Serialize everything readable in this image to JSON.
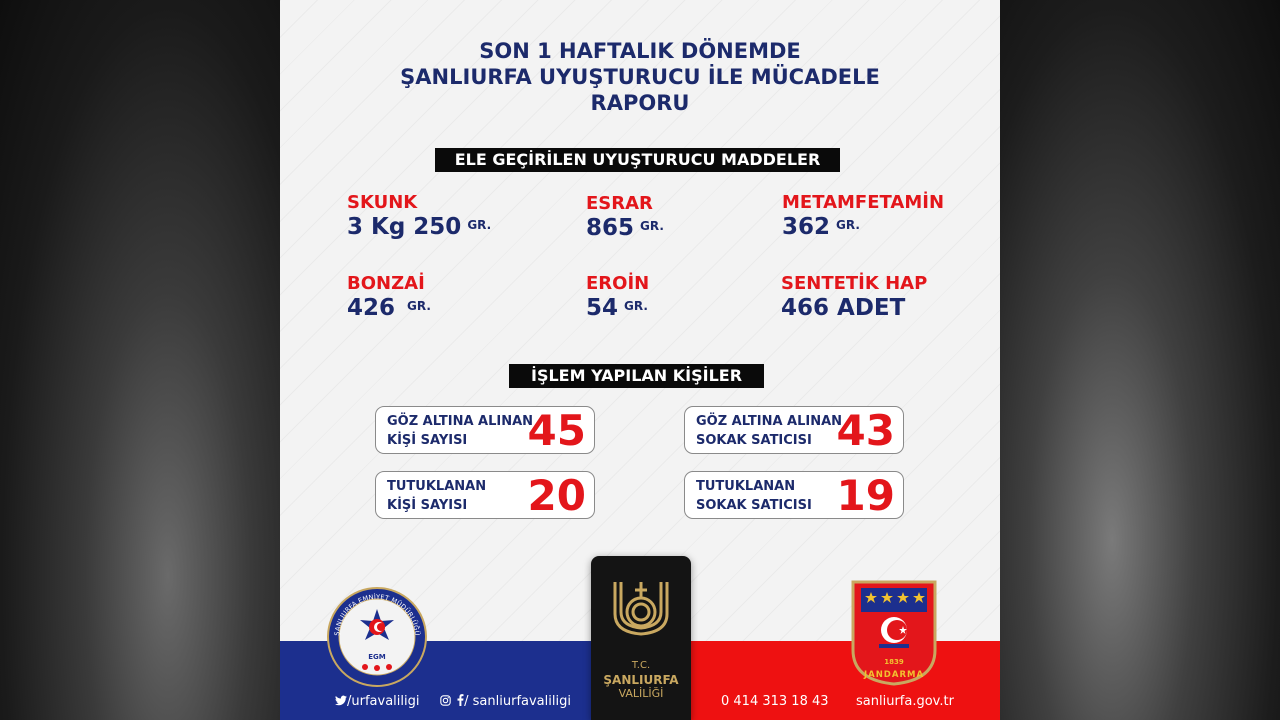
{
  "title": {
    "line1": "SON 1 HAFTALIK DÖNEMDE",
    "line2": "ŞANLIURFA UYUŞTURUCU İLE MÜCADELE",
    "line3": "RAPORU"
  },
  "seized_section": {
    "label": "ELE GEÇİRİLEN UYUŞTURUCU MADDELER",
    "items": [
      {
        "name": "SKUNK",
        "amount": "3 Kg 250",
        "unit": "GR."
      },
      {
        "name": "ESRAR",
        "amount": "865",
        "unit": "GR."
      },
      {
        "name": "METAMFETAMİN",
        "amount": "362",
        "unit": "GR."
      },
      {
        "name": "BONZAİ",
        "amount": "426",
        "unit": "GR."
      },
      {
        "name": "EROİN",
        "amount": "54",
        "unit": "GR."
      },
      {
        "name": "SENTETİK HAP",
        "amount": "466 ADET",
        "unit": ""
      }
    ]
  },
  "persons_section": {
    "label": "İŞLEM YAPILAN KİŞİLER",
    "stats": [
      {
        "line1": "GÖZ ALTINA ALINAN",
        "line2": "KİŞİ SAYISI",
        "value": "45"
      },
      {
        "line1": "GÖZ ALTINA ALINAN",
        "line2": "SOKAK SATICISI",
        "value": "43"
      },
      {
        "line1": "TUTUKLANAN",
        "line2": "KİŞİ SAYISI",
        "value": "20"
      },
      {
        "line1": "TUTUKLANAN",
        "line2": "SOKAK SATICISI",
        "value": "19"
      }
    ]
  },
  "logos": {
    "egm_ring_text": "ŞANLIURFA EMNİYET MÜDÜRLÜĞÜ",
    "egm_abbrev": "EGM",
    "valilik_tc": "T.C.",
    "valilik_name": "ŞANLIURFA",
    "valilik_sub": "VALİLİĞİ",
    "jandarma_text": "JANDARMA",
    "jandarma_year": "1839"
  },
  "footer": {
    "twitter": "/urfavaliligi",
    "social": "/ sanliurfavaliligi",
    "phone": "0 414 313 18 43",
    "website": "sanliurfa.gov.tr"
  },
  "colors": {
    "navy": "#1c2a6b",
    "red": "#e3161b",
    "band_blue": "#1c2f8e",
    "band_red": "#ee1111",
    "gold": "#c9a860"
  },
  "icons": [
    "twitter-icon",
    "instagram-icon",
    "facebook-icon",
    "star-crescent-icon",
    "star-icon"
  ]
}
